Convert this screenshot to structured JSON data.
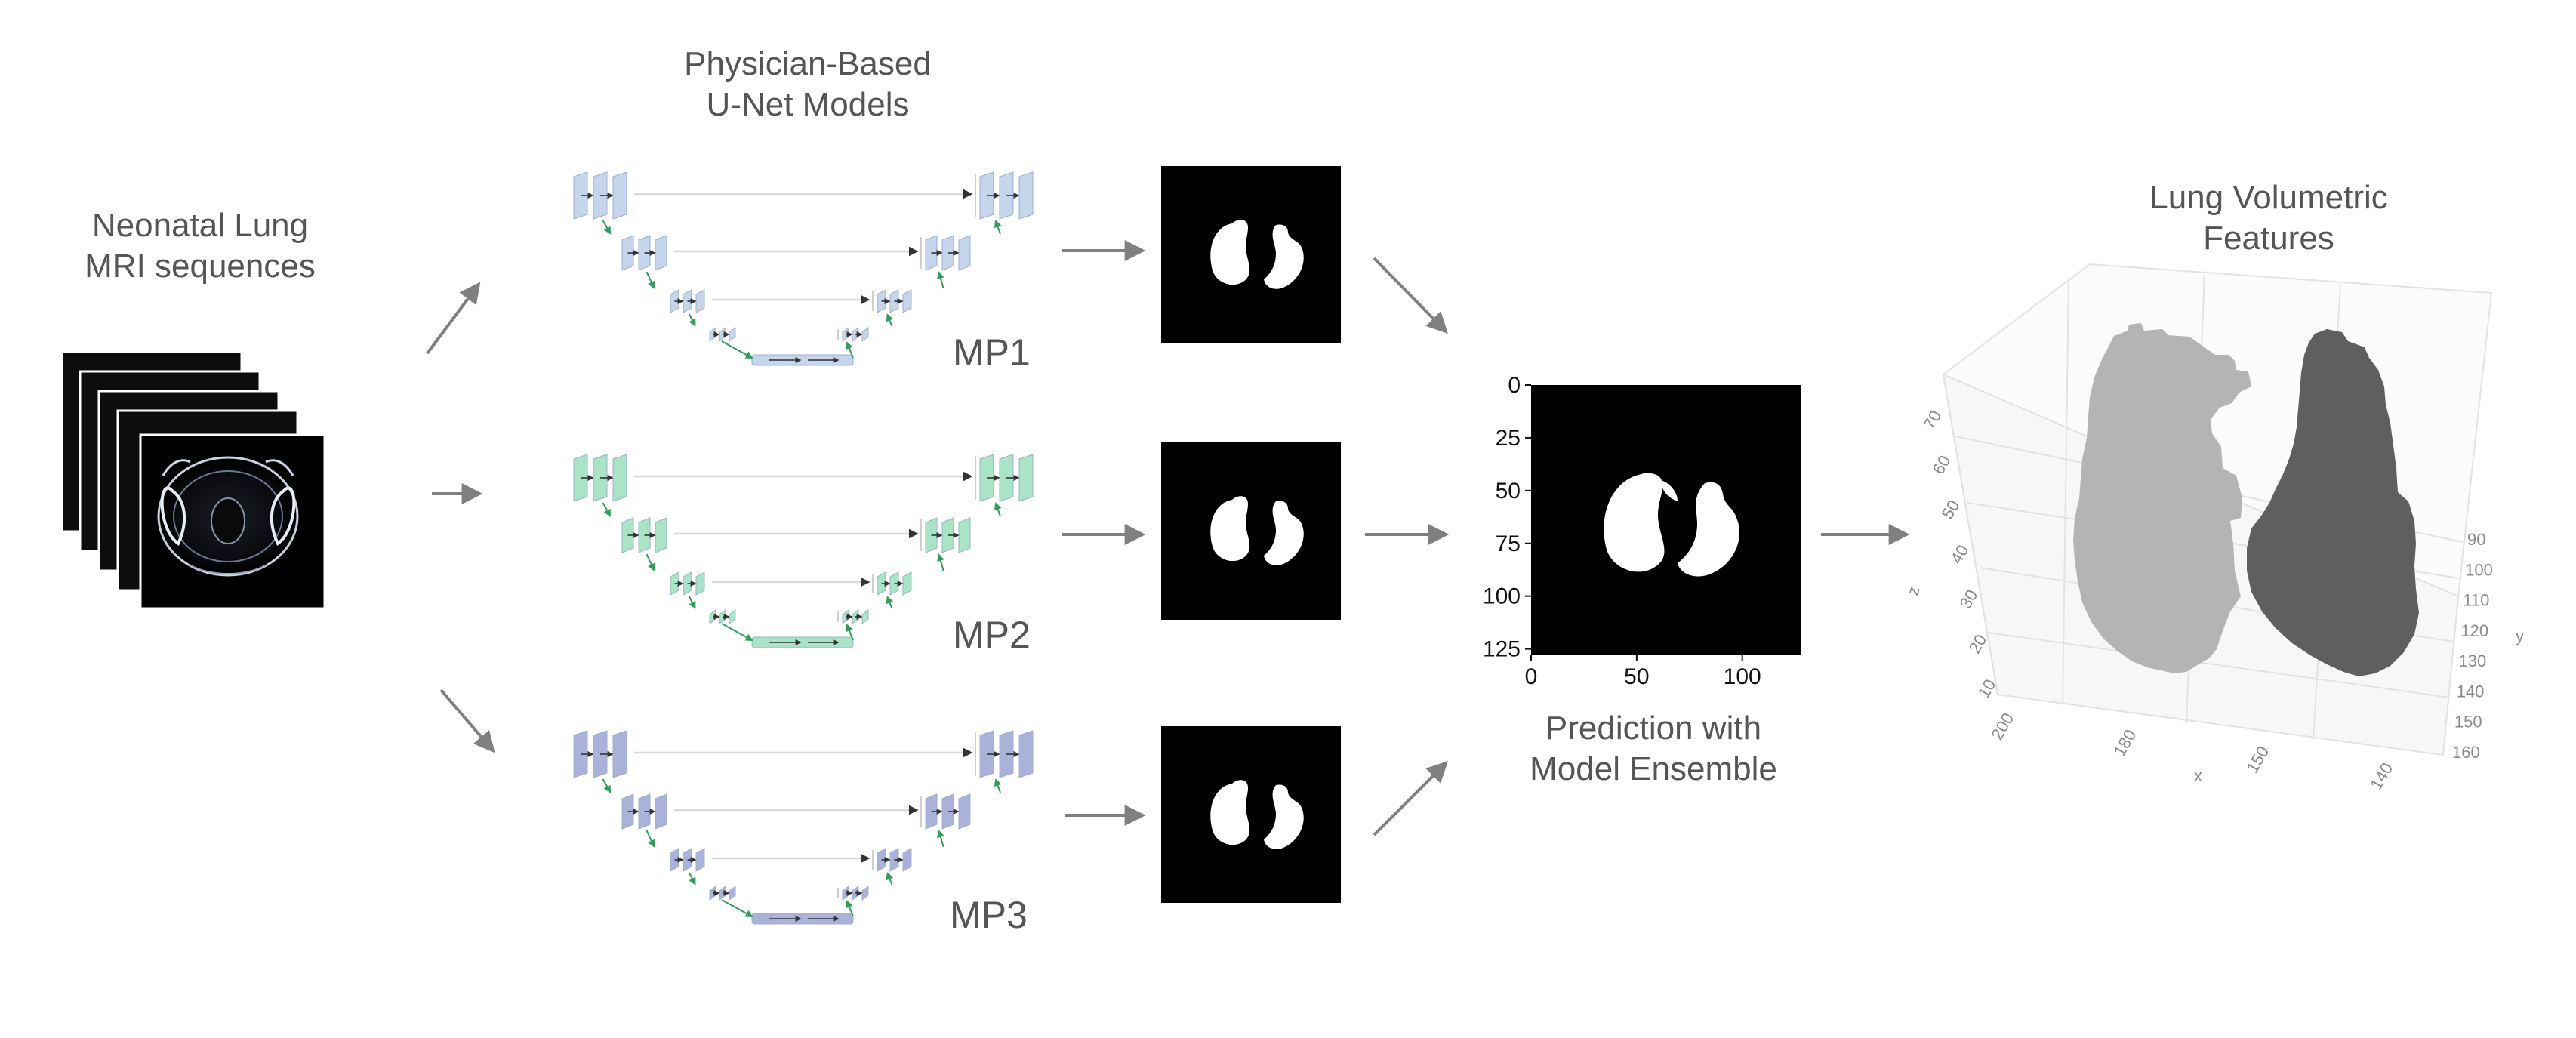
{
  "input": {
    "title_line1": "Neonatal Lung",
    "title_line2": "MRI sequences"
  },
  "models": {
    "title_line1": "Physician-Based",
    "title_line2": "U-Net Models",
    "items": [
      {
        "label": "MP1",
        "color": "#c5d5ec"
      },
      {
        "label": "MP2",
        "color": "#a9e4c6"
      },
      {
        "label": "MP3",
        "color": "#aab2da"
      }
    ]
  },
  "ensemble": {
    "title_line1": "Prediction with",
    "title_line2": "Model Ensemble",
    "y_ticks": [
      "0",
      "25",
      "50",
      "75",
      "100",
      "125"
    ],
    "x_ticks": [
      "0",
      "50",
      "100"
    ]
  },
  "volumetric": {
    "title_line1": "Lung Volumetric",
    "title_line2": "Features",
    "z_axis_label": "z",
    "z_ticks": [
      "70",
      "60",
      "50",
      "40",
      "30",
      "20",
      "10"
    ],
    "x_axis_label": "x",
    "x_ticks": [
      "200",
      "180",
      "150",
      "140"
    ],
    "y_axis_label": "y",
    "y_ticks": [
      "90",
      "100",
      "110",
      "120",
      "130",
      "140",
      "150",
      "160"
    ],
    "left_lung_color": "#b4b4b4",
    "right_lung_color": "#5f5f5f"
  },
  "colors": {
    "arrow": "#808080",
    "skip_connection": "#d8d8d8",
    "inner_arrow": "#2e9e5a"
  }
}
